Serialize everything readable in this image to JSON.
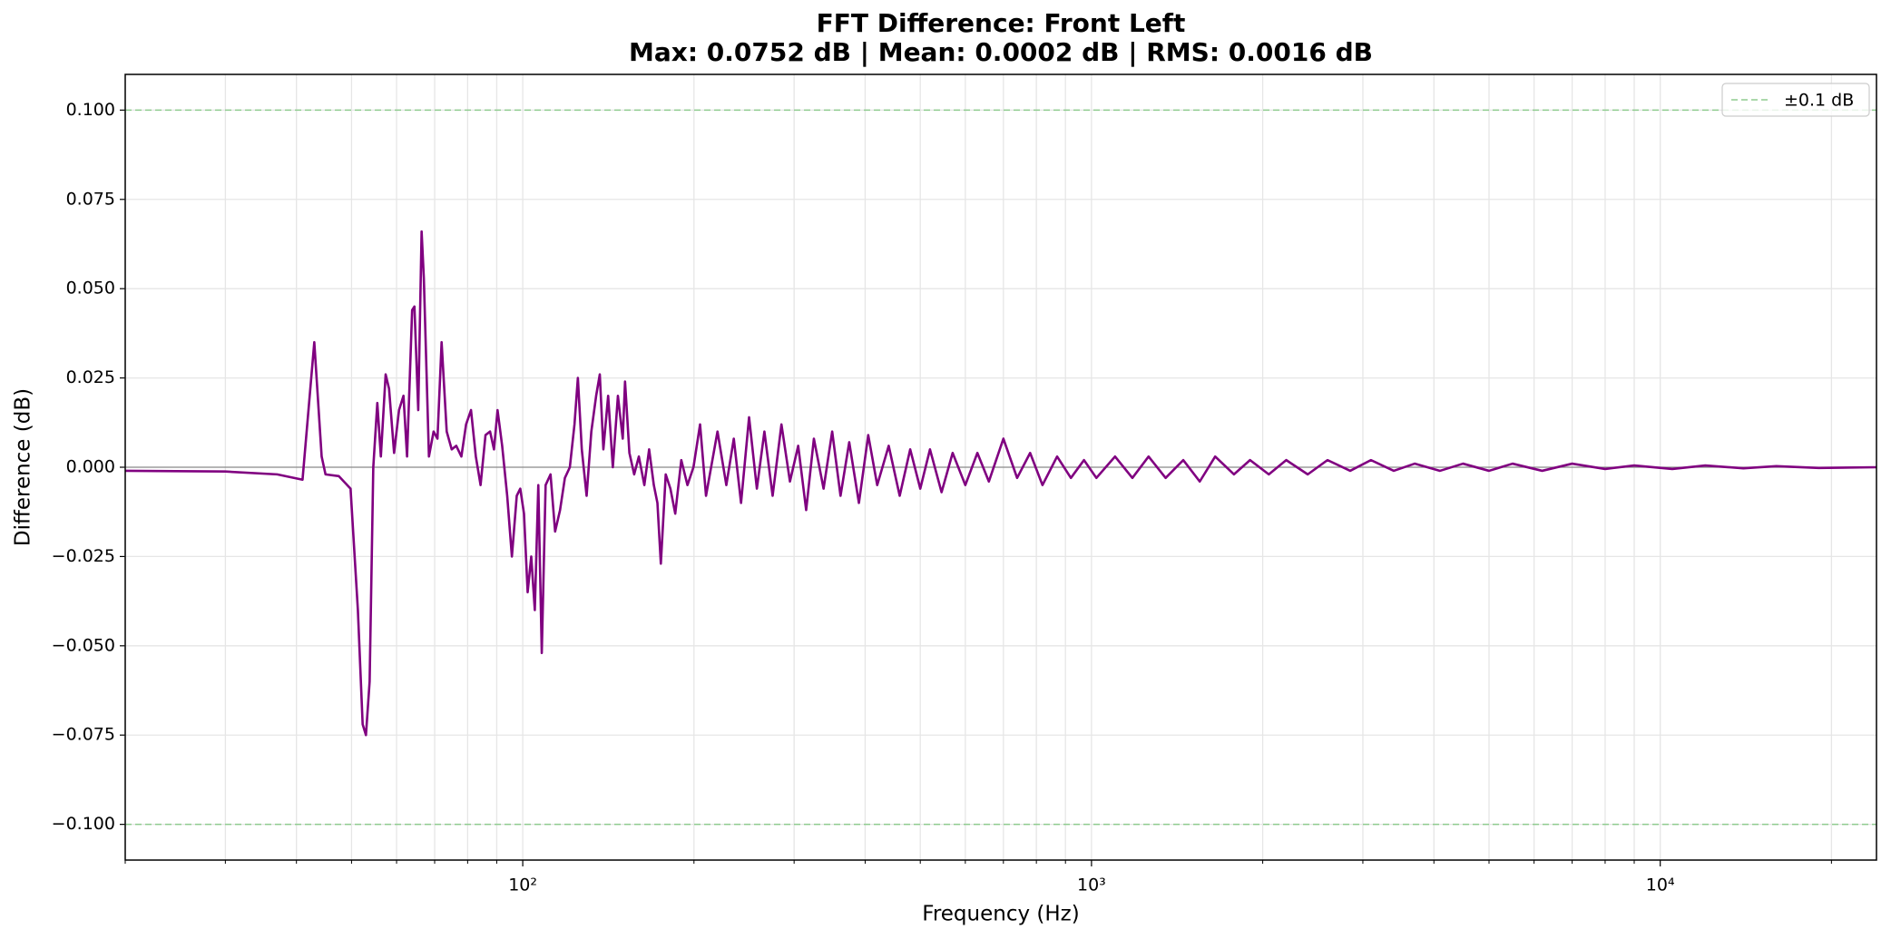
{
  "chart_data": {
    "type": "line",
    "title": "FFT Difference: Front Left",
    "subtitle": "Max: 0.0752 dB | Mean: 0.0002 dB | RMS: 0.0016 dB",
    "xlabel": "Frequency (Hz)",
    "ylabel": "Difference (dB)",
    "xscale": "log",
    "grid": true,
    "legend_position": "upper right",
    "xlim": [
      20,
      24000
    ],
    "ylim": [
      -0.11,
      0.11
    ],
    "xticks": [
      {
        "value": 100,
        "label": "10²"
      },
      {
        "value": 1000,
        "label": "10³"
      },
      {
        "value": 10000,
        "label": "10⁴"
      }
    ],
    "xticks_minor": [
      20,
      30,
      40,
      50,
      60,
      70,
      80,
      90,
      200,
      300,
      400,
      500,
      600,
      700,
      800,
      900,
      2000,
      3000,
      4000,
      5000,
      6000,
      7000,
      8000,
      9000,
      20000
    ],
    "yticks": [
      {
        "value": -0.1,
        "label": "−0.100"
      },
      {
        "value": -0.075,
        "label": "−0.075"
      },
      {
        "value": -0.05,
        "label": "−0.050"
      },
      {
        "value": -0.025,
        "label": "−0.025"
      },
      {
        "value": 0,
        "label": "0.000"
      },
      {
        "value": 0.025,
        "label": "0.025"
      },
      {
        "value": 0.05,
        "label": "0.050"
      },
      {
        "value": 0.075,
        "label": "0.075"
      },
      {
        "value": 0.1,
        "label": "0.100"
      }
    ],
    "threshold": {
      "name": "±0.1 dB",
      "color": "#8fcc8f",
      "values": [
        0.1,
        -0.1
      ]
    },
    "x": [
      20,
      30,
      37,
      41,
      43,
      44.3,
      45,
      47.5,
      49.8,
      51.3,
      52.3,
      53,
      53.8,
      54.6,
      55.5,
      56.3,
      57.4,
      58.2,
      59.4,
      60.6,
      61.7,
      62.6,
      63.9,
      64.5,
      65.5,
      66.4,
      67,
      68.4,
      69.7,
      70.8,
      72,
      73.5,
      75,
      76.4,
      78,
      79.5,
      81.1,
      82.7,
      84.3,
      86,
      87.6,
      89,
      90.3,
      92,
      93.9,
      95.7,
      97.6,
      99,
      100.5,
      102,
      103.5,
      105,
      106.5,
      108,
      109.7,
      111.9,
      114,
      116.3,
      118.6,
      121,
      123.3,
      125,
      127,
      129.5,
      132,
      134.6,
      136.6,
      138.6,
      141.3,
      144,
      147,
      149.9,
      151.3,
      154,
      157,
      160,
      163.6,
      166.8,
      170,
      172.5,
      174.9,
      178.4,
      181.8,
      185.4,
      190,
      194.8,
      199.6,
      205,
      210,
      220,
      228,
      235,
      242,
      250,
      258,
      266,
      275,
      285,
      295,
      305,
      315,
      325,
      338,
      350,
      362,
      375,
      390,
      405,
      420,
      440,
      460,
      480,
      500,
      520,
      545,
      570,
      600,
      630,
      660,
      700,
      740,
      780,
      820,
      870,
      920,
      970,
      1020,
      1100,
      1180,
      1260,
      1350,
      1450,
      1550,
      1650,
      1780,
      1900,
      2050,
      2200,
      2400,
      2600,
      2850,
      3100,
      3400,
      3700,
      4100,
      4500,
      5000,
      5500,
      6200,
      7000,
      8000,
      9000,
      10500,
      12000,
      14000,
      16000,
      19000,
      24000
    ],
    "series": [
      {
        "color": "#800080",
        "values": [
          -0.001,
          -0.0012,
          -0.002,
          -0.0035,
          0.035,
          0.003,
          -0.002,
          -0.0025,
          -0.006,
          -0.04,
          -0.072,
          -0.075,
          -0.06,
          0.0,
          0.018,
          0.003,
          0.026,
          0.022,
          0.004,
          0.016,
          0.02,
          0.003,
          0.044,
          0.045,
          0.016,
          0.066,
          0.053,
          0.003,
          0.01,
          0.008,
          0.035,
          0.01,
          0.005,
          0.006,
          0.003,
          0.012,
          0.016,
          0.003,
          -0.005,
          0.009,
          0.01,
          0.005,
          0.016,
          0.006,
          -0.008,
          -0.025,
          -0.008,
          -0.006,
          -0.013,
          -0.035,
          -0.025,
          -0.04,
          -0.005,
          -0.052,
          -0.005,
          -0.002,
          -0.018,
          -0.012,
          -0.003,
          0.0,
          0.012,
          0.025,
          0.005,
          -0.008,
          0.01,
          0.02,
          0.026,
          0.005,
          0.02,
          0.0,
          0.02,
          0.008,
          0.024,
          0.004,
          -0.002,
          0.003,
          -0.005,
          0.005,
          -0.005,
          -0.01,
          -0.027,
          -0.002,
          -0.006,
          -0.013,
          0.002,
          -0.005,
          0.0,
          0.012,
          -0.008,
          0.01,
          -0.005,
          0.008,
          -0.01,
          0.014,
          -0.006,
          0.01,
          -0.008,
          0.012,
          -0.004,
          0.006,
          -0.012,
          0.008,
          -0.006,
          0.01,
          -0.008,
          0.007,
          -0.01,
          0.009,
          -0.005,
          0.006,
          -0.008,
          0.005,
          -0.006,
          0.005,
          -0.007,
          0.004,
          -0.005,
          0.004,
          -0.004,
          0.008,
          -0.003,
          0.004,
          -0.005,
          0.003,
          -0.003,
          0.002,
          -0.003,
          0.003,
          -0.003,
          0.003,
          -0.003,
          0.002,
          -0.004,
          0.003,
          -0.002,
          0.002,
          -0.002,
          0.002,
          -0.002,
          0.002,
          -0.001,
          0.002,
          -0.001,
          0.001,
          -0.001,
          0.001,
          -0.001,
          0.001,
          -0.001,
          0.001,
          -0.0005,
          0.0005,
          -0.0005,
          0.0005,
          -0.0003,
          0.0003,
          -0.0002,
          0
        ]
      }
    ]
  }
}
